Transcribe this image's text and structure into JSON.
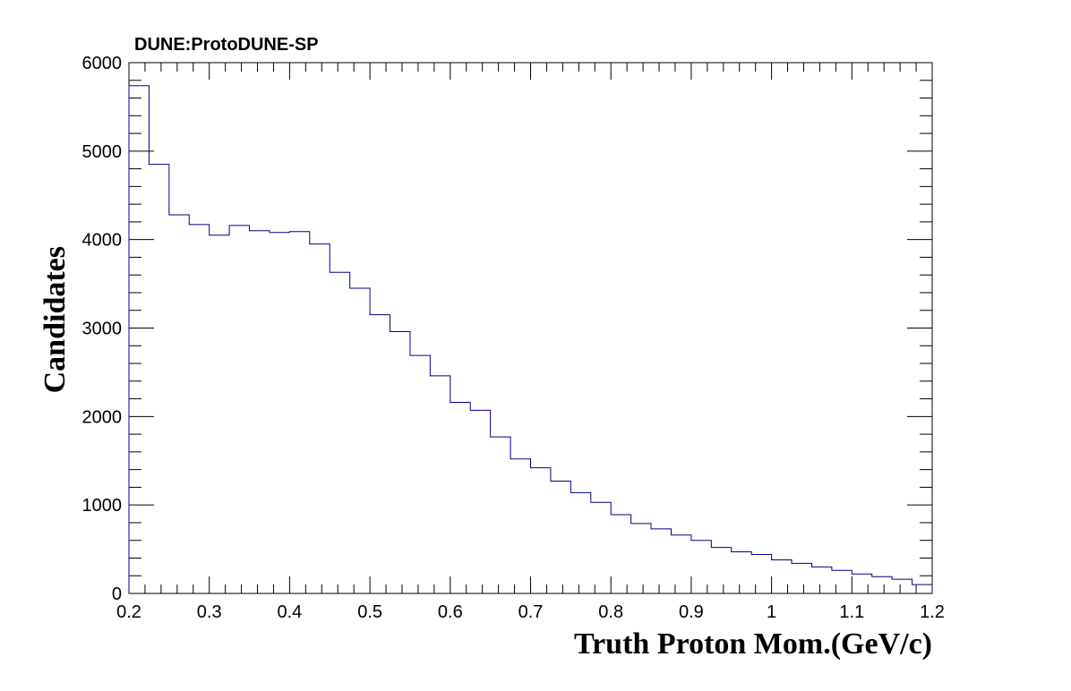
{
  "chart_data": {
    "type": "histogram",
    "title": "DUNE:ProtoDUNE-SP",
    "xlabel": "Truth Proton Mom.(GeV/c)",
    "ylabel": "Candidates",
    "xlim": [
      0.2,
      1.2
    ],
    "ylim": [
      0,
      6000
    ],
    "bin_width": 0.025,
    "x_ticks": [
      "0.2",
      "0.3",
      "0.4",
      "0.5",
      "0.6",
      "0.7",
      "0.8",
      "0.9",
      "1",
      "1.1",
      "1.2"
    ],
    "y_ticks": [
      "0",
      "1000",
      "2000",
      "3000",
      "4000",
      "5000",
      "6000"
    ],
    "bin_edges": [
      0.2,
      0.225,
      0.25,
      0.275,
      0.3,
      0.325,
      0.35,
      0.375,
      0.4,
      0.425,
      0.45,
      0.475,
      0.5,
      0.525,
      0.55,
      0.575,
      0.6,
      0.625,
      0.65,
      0.675,
      0.7,
      0.725,
      0.75,
      0.775,
      0.8,
      0.825,
      0.85,
      0.875,
      0.9,
      0.925,
      0.95,
      0.975,
      1.0,
      1.025,
      1.05,
      1.075,
      1.1,
      1.125,
      1.15,
      1.175,
      1.2
    ],
    "values": [
      5740,
      4850,
      4280,
      4170,
      4050,
      4160,
      4100,
      4080,
      4090,
      3950,
      3630,
      3450,
      3150,
      2960,
      2690,
      2460,
      2160,
      2070,
      1770,
      1520,
      1420,
      1270,
      1140,
      1030,
      890,
      790,
      730,
      660,
      600,
      520,
      470,
      440,
      380,
      340,
      300,
      260,
      220,
      190,
      160,
      100
    ],
    "line_color": "#00008b",
    "grid": false
  }
}
